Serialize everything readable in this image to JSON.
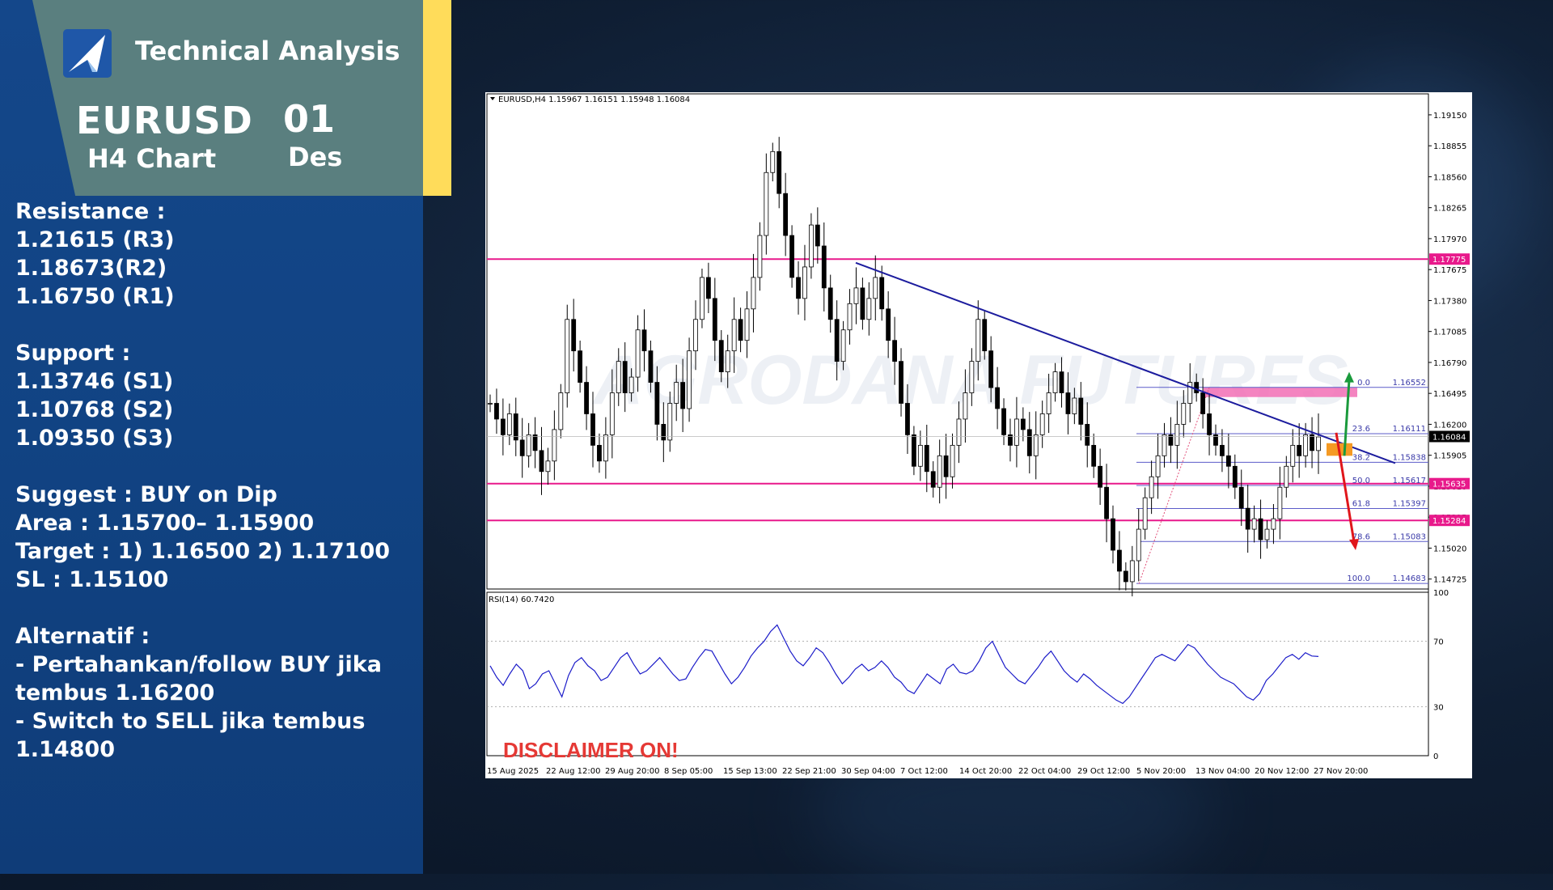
{
  "header": {
    "title": "Technical Analysis",
    "pair": "EURUSD",
    "timeframe": "H4 Chart",
    "day": "01",
    "month": "Des"
  },
  "analysis": {
    "resistance_label": "Resistance :",
    "resistance": [
      "1.21615 (R3)",
      "1.18673(R2)",
      "1.16750 (R1)"
    ],
    "support_label": "Support :",
    "support": [
      "1.13746 (S1)",
      "1.10768  (S2)",
      "1.09350  (S3)"
    ],
    "suggest": "Suggest :  BUY on Dip",
    "area": "Area : 1.15700– 1.15900",
    "target": "Target : 1) 1.16500  2) 1.17100",
    "sl": "SL : 1.15100",
    "alternatif_label": "Alternatif :",
    "alt1_line1": "- Pertahankan/follow BUY jika",
    "alt1_line2": "tembus 1.16200",
    "alt2_line1": "- Switch to SELL jika tembus",
    "alt2_line2": "1.14800"
  },
  "colors": {
    "panel": "#114383",
    "header_box": "#5a7f7f",
    "accent_yellow": "#ffdc5a",
    "level_line": "#e8198b",
    "trendline": "#1c1c9e",
    "up_arrow": "#1a9a3c",
    "down_arrow": "#e0161b",
    "disclaimer": "#e53935"
  },
  "chart_data": [
    {
      "type": "candlestick",
      "title": "EURUSD,H4  1.15967 1.16151 1.15948 1.16084",
      "symbol": "EURUSD",
      "timeframe": "H4",
      "ohlc_current": {
        "open": 1.15967,
        "high": 1.16151,
        "low": 1.15948,
        "close": 1.16084
      },
      "current_price": "1.16084",
      "y_ticks": [
        "1.19150",
        "1.18855",
        "1.18560",
        "1.18265",
        "1.17970",
        "1.17675",
        "1.17380",
        "1.17085",
        "1.16790",
        "1.16495",
        "1.16200",
        "1.15905",
        "1.15610",
        "1.15315",
        "1.15020",
        "1.14725"
      ],
      "ylim": [
        1.1463,
        1.1935
      ],
      "x_tick_labels": [
        "15 Aug 2025",
        "22 Aug 12:00",
        "29 Aug 20:00",
        "8 Sep 05:00",
        "15 Sep 13:00",
        "22 Sep 21:00",
        "30 Sep 04:00",
        "7 Oct 12:00",
        "14 Oct 20:00",
        "22 Oct 04:00",
        "29 Oct 12:00",
        "5 Nov 20:00",
        "13 Nov 04:00",
        "20 Nov 12:00",
        "27 Nov 20:00"
      ],
      "price_path": [
        1.164,
        1.1625,
        1.161,
        1.163,
        1.1605,
        1.159,
        1.161,
        1.1595,
        1.1575,
        1.1585,
        1.1615,
        1.165,
        1.172,
        1.169,
        1.166,
        1.163,
        1.16,
        1.1585,
        1.161,
        1.165,
        1.168,
        1.165,
        1.1665,
        1.171,
        1.169,
        1.166,
        1.162,
        1.1605,
        1.164,
        1.166,
        1.1635,
        1.169,
        1.172,
        1.176,
        1.174,
        1.17,
        1.167,
        1.169,
        1.172,
        1.17,
        1.173,
        1.176,
        1.18,
        1.186,
        1.188,
        1.184,
        1.18,
        1.176,
        1.174,
        1.177,
        1.181,
        1.179,
        1.175,
        1.172,
        1.168,
        1.171,
        1.1735,
        1.175,
        1.172,
        1.174,
        1.176,
        1.173,
        1.17,
        1.168,
        1.164,
        1.161,
        1.158,
        1.16,
        1.1575,
        1.156,
        1.159,
        1.157,
        1.16,
        1.1625,
        1.165,
        1.168,
        1.172,
        1.169,
        1.1655,
        1.1635,
        1.161,
        1.16,
        1.1625,
        1.1615,
        1.159,
        1.161,
        1.163,
        1.165,
        1.167,
        1.165,
        1.163,
        1.1645,
        1.162,
        1.16,
        1.158,
        1.156,
        1.153,
        1.15,
        1.148,
        1.147,
        1.149,
        1.152,
        1.155,
        1.157,
        1.159,
        1.161,
        1.16,
        1.162,
        1.164,
        1.166,
        1.165,
        1.163,
        1.161,
        1.16,
        1.159,
        1.158,
        1.156,
        1.154,
        1.152,
        1.153,
        1.151,
        1.152,
        1.153,
        1.156,
        1.158,
        1.16,
        1.159,
        1.161,
        1.1595,
        1.1608
      ],
      "horizontal_levels": [
        {
          "label": "1.17775",
          "value": 1.17775
        },
        {
          "label": "1.15635",
          "value": 1.15635
        },
        {
          "label": "1.15284",
          "value": 1.15284
        }
      ],
      "fibonacci": [
        {
          "level": "0.0",
          "price": "1.16552",
          "value": 1.16552
        },
        {
          "level": "23.6",
          "price": "1.16111",
          "value": 1.16111
        },
        {
          "level": "38.2",
          "price": "1.15838",
          "value": 1.15838
        },
        {
          "level": "50.0",
          "price": "1.15617",
          "value": 1.15617
        },
        {
          "level": "61.8",
          "price": "1.15397",
          "value": 1.15397
        },
        {
          "level": "78.6",
          "price": "1.15083",
          "value": 1.15083
        },
        {
          "level": "100.0",
          "price": "1.14683",
          "value": 1.14683
        }
      ],
      "trendline": {
        "from": 1.1774,
        "to": 1.1583
      },
      "zones": [
        {
          "name": "resistance-zone",
          "from": 1.1646,
          "to": 1.1655
        },
        {
          "name": "entry-zone",
          "from": 1.159,
          "to": 1.1602
        }
      ],
      "scenario_targets": {
        "up_arrow_to": 1.167,
        "down_arrow_to": 1.15
      },
      "watermark": "AGRODANA FUTURES"
    },
    {
      "type": "line",
      "title": "RSI(14) 60.7420",
      "indicator": "RSI(14)",
      "value": 60.742,
      "ylim": [
        0,
        100
      ],
      "y_ticks": [
        "100",
        "70",
        "30",
        "0"
      ],
      "values": [
        55,
        48,
        43,
        50,
        56,
        52,
        41,
        44,
        50,
        52,
        44,
        36,
        49,
        57,
        60,
        55,
        52,
        46,
        48,
        54,
        60,
        63,
        56,
        50,
        52,
        56,
        60,
        55,
        50,
        46,
        47,
        54,
        60,
        65,
        64,
        57,
        50,
        44,
        48,
        54,
        61,
        66,
        70,
        76,
        80,
        72,
        64,
        58,
        55,
        60,
        66,
        63,
        57,
        50,
        44,
        48,
        53,
        56,
        52,
        54,
        58,
        54,
        48,
        45,
        40,
        38,
        44,
        50,
        47,
        44,
        53,
        56,
        51,
        50,
        52,
        58,
        66,
        70,
        62,
        54,
        50,
        46,
        44,
        49,
        54,
        60,
        64,
        58,
        52,
        48,
        45,
        50,
        47,
        43,
        40,
        37,
        34,
        32,
        36,
        42,
        48,
        54,
        60,
        62,
        60,
        58,
        63,
        68,
        66,
        61,
        56,
        52,
        48,
        46,
        44,
        40,
        36,
        34,
        38,
        46,
        50,
        55,
        60,
        62,
        59,
        63,
        61,
        60.7
      ]
    }
  ],
  "disclaimer": "DISCLAIMER ON!"
}
